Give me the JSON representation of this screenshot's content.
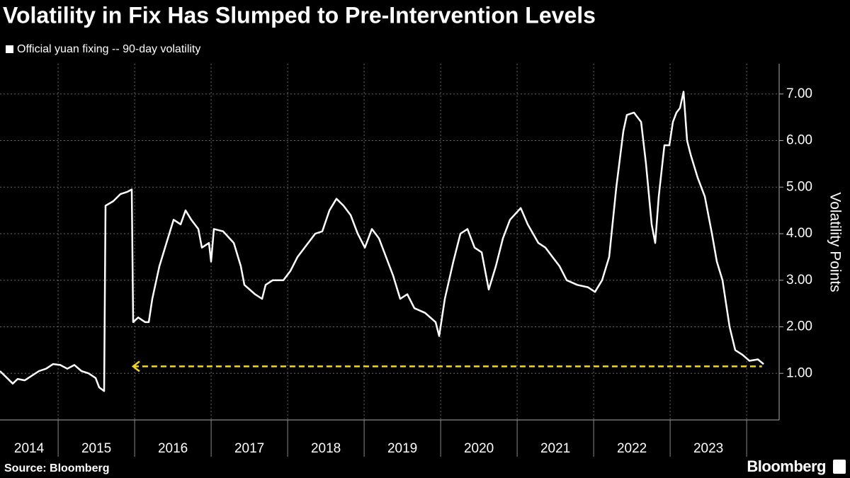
{
  "chart_data": {
    "type": "line",
    "title": "Volatility in Fix Has Slumped to Pre-Intervention Levels",
    "source": "Source: Bloomberg",
    "brand": "Bloomberg",
    "y_axis_label": "Volatility Points",
    "categories": [
      "2014",
      "2015",
      "2016",
      "2017",
      "2018",
      "2019",
      "2020",
      "2021",
      "2022",
      "2023"
    ],
    "xlim": [
      2014.24,
      2024.425
    ],
    "xticks": [
      2015,
      2016,
      2017,
      2018,
      2019,
      2020,
      2021,
      2022,
      2023,
      2024
    ],
    "ylim": [
      0,
      7.65
    ],
    "yticks": [
      {
        "value": 1,
        "label": "1.00"
      },
      {
        "value": 2,
        "label": "2.00"
      },
      {
        "value": 3,
        "label": "3.00"
      },
      {
        "value": 4,
        "label": "4.00"
      },
      {
        "value": 5,
        "label": "5.00"
      },
      {
        "value": 6,
        "label": "6.00"
      },
      {
        "value": 7,
        "label": "7.00"
      }
    ],
    "grid": true,
    "reference_line": {
      "value": 1.15,
      "x": [
        2015.98,
        2024.2
      ],
      "color": "#f2d91c"
    },
    "series": [
      {
        "name": "Official yuan fixing -- 90-day volatility",
        "color": "#ffffff",
        "x": [
          2014.24,
          2014.333,
          2014.407,
          2014.471,
          2014.564,
          2014.657,
          2014.749,
          2014.842,
          2014.934,
          2015.027,
          2015.12,
          2015.212,
          2015.305,
          2015.397,
          2015.49,
          2015.536,
          2015.601,
          2015.62,
          2015.721,
          2015.814,
          2015.907,
          2015.962,
          2015.981,
          2016.046,
          2016.138,
          2016.184,
          2016.231,
          2016.323,
          2016.416,
          2016.509,
          2016.601,
          2016.666,
          2016.74,
          2016.833,
          2016.879,
          2016.971,
          2016.999,
          2017.036,
          2017.157,
          2017.296,
          2017.388,
          2017.434,
          2017.573,
          2017.666,
          2017.712,
          2017.805,
          2017.944,
          2018.036,
          2018.129,
          2018.221,
          2018.36,
          2018.453,
          2018.546,
          2018.638,
          2018.731,
          2018.823,
          2018.916,
          2019.009,
          2019.101,
          2019.194,
          2019.286,
          2019.379,
          2019.471,
          2019.564,
          2019.657,
          2019.796,
          2019.934,
          2019.981,
          2020.055,
          2020.166,
          2020.258,
          2020.351,
          2020.444,
          2020.536,
          2020.629,
          2020.721,
          2020.814,
          2020.907,
          2021.046,
          2021.138,
          2021.277,
          2021.37,
          2021.462,
          2021.555,
          2021.647,
          2021.786,
          2021.925,
          2022.018,
          2022.11,
          2022.203,
          2022.296,
          2022.388,
          2022.434,
          2022.527,
          2022.62,
          2022.684,
          2022.758,
          2022.805,
          2022.851,
          2022.925,
          2022.99,
          2023.036,
          2023.082,
          2023.129,
          2023.175,
          2023.221,
          2023.268,
          2023.36,
          2023.453,
          2023.546,
          2023.61,
          2023.684,
          2023.777,
          2023.851,
          2023.944,
          2024.036,
          2024.147,
          2024.221
        ],
        "values": [
          1.05,
          0.9,
          0.78,
          0.88,
          0.85,
          0.95,
          1.05,
          1.1,
          1.2,
          1.18,
          1.1,
          1.18,
          1.05,
          1.0,
          0.9,
          0.7,
          0.62,
          4.6,
          4.7,
          4.85,
          4.9,
          4.95,
          2.1,
          2.2,
          2.1,
          2.1,
          2.6,
          3.3,
          3.8,
          4.3,
          4.2,
          4.5,
          4.3,
          4.1,
          3.7,
          3.8,
          3.4,
          4.1,
          4.05,
          3.8,
          3.3,
          2.9,
          2.7,
          2.6,
          2.9,
          3.0,
          3.0,
          3.2,
          3.5,
          3.7,
          4.0,
          4.05,
          4.5,
          4.75,
          4.6,
          4.4,
          4.0,
          3.7,
          4.1,
          3.9,
          3.5,
          3.1,
          2.6,
          2.7,
          2.4,
          2.3,
          2.1,
          1.8,
          2.6,
          3.4,
          4.0,
          4.1,
          3.7,
          3.6,
          2.8,
          3.3,
          3.9,
          4.3,
          4.55,
          4.2,
          3.8,
          3.7,
          3.5,
          3.3,
          3.0,
          2.9,
          2.85,
          2.75,
          3.0,
          3.5,
          5.0,
          6.2,
          6.55,
          6.6,
          6.4,
          5.5,
          4.2,
          3.8,
          4.8,
          5.9,
          5.9,
          6.4,
          6.6,
          6.7,
          7.05,
          6.0,
          5.7,
          5.2,
          4.8,
          4.0,
          3.4,
          3.0,
          2.0,
          1.5,
          1.4,
          1.27,
          1.3,
          1.2
        ]
      }
    ]
  }
}
